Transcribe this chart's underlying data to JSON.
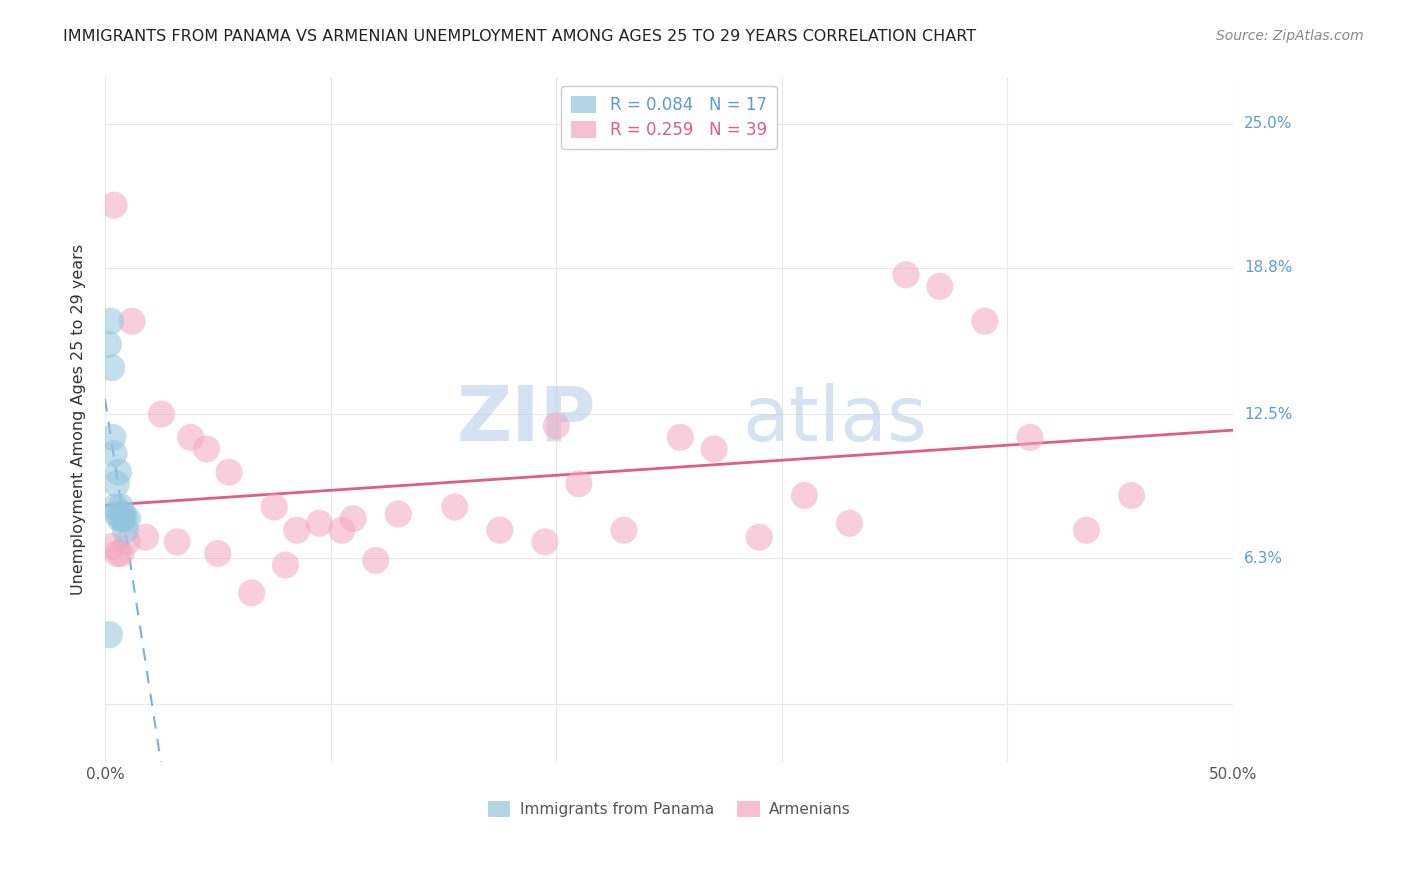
{
  "title": "IMMIGRANTS FROM PANAMA VS ARMENIAN UNEMPLOYMENT AMONG AGES 25 TO 29 YEARS CORRELATION CHART",
  "source": "Source: ZipAtlas.com",
  "ylabel": "Unemployment Among Ages 25 to 29 years",
  "ytick_labels": [
    "6.3%",
    "12.5%",
    "18.8%",
    "25.0%"
  ],
  "ytick_values": [
    6.3,
    12.5,
    18.8,
    25.0
  ],
  "xlim": [
    0.0,
    50.0
  ],
  "ylim": [
    -2.5,
    27.0
  ],
  "legend1_r": "0.084",
  "legend1_n": "17",
  "legend2_r": "0.259",
  "legend2_n": "39",
  "legend1_label": "Immigrants from Panama",
  "legend2_label": "Armenians",
  "color_blue": "#92c5de",
  "color_pink": "#f4a6c0",
  "color_line_blue": "#5b9bd5",
  "color_line_pink": "#e05c8a",
  "panama_x": [
    0.15,
    0.25,
    0.3,
    0.35,
    0.4,
    0.45,
    0.5,
    0.55,
    0.6,
    0.65,
    0.7,
    0.75,
    0.8,
    0.85,
    0.9,
    1.0,
    0.2
  ],
  "panama_y": [
    15.5,
    16.5,
    14.5,
    11.5,
    10.8,
    8.5,
    9.5,
    8.2,
    10.0,
    8.0,
    8.5,
    8.0,
    8.2,
    8.0,
    7.5,
    8.0,
    3.0
  ],
  "armenian_x": [
    0.4,
    1.2,
    2.5,
    3.8,
    4.5,
    5.5,
    7.5,
    8.5,
    9.5,
    11.0,
    13.0,
    15.5,
    17.5,
    19.5,
    21.0,
    23.0,
    25.5,
    27.0,
    29.0,
    31.0,
    33.0,
    35.5,
    37.0,
    39.0,
    41.0,
    43.5,
    45.5,
    0.3,
    0.55,
    0.7,
    1.0,
    1.8,
    3.2,
    5.0,
    6.5,
    8.0,
    10.5,
    12.0,
    20.0
  ],
  "armenian_y": [
    21.5,
    16.5,
    12.5,
    11.5,
    11.0,
    10.0,
    8.5,
    7.5,
    7.8,
    8.0,
    8.2,
    8.5,
    7.5,
    7.0,
    9.5,
    7.5,
    11.5,
    11.0,
    7.2,
    9.0,
    7.8,
    18.5,
    18.0,
    16.5,
    11.5,
    7.5,
    9.0,
    6.8,
    6.5,
    6.5,
    7.0,
    7.2,
    7.0,
    6.5,
    4.8,
    6.0,
    7.5,
    6.2,
    12.0
  ],
  "watermark_zip": "ZIP",
  "watermark_atlas": "atlas",
  "background_color": "#ffffff",
  "grid_color": "#e8e8e8"
}
